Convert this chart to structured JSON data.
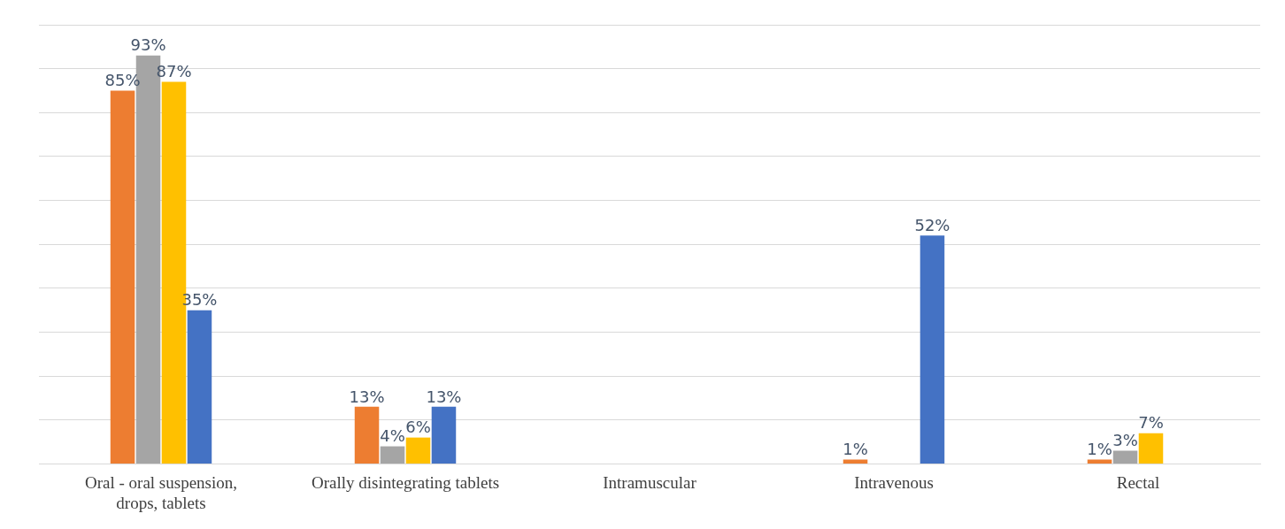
{
  "chart_data": {
    "type": "bar",
    "categories": [
      "Oral - oral suspension, drops, tablets",
      "Orally disintegrating tablets",
      "Intramuscular",
      "Intravenous",
      "Rectal"
    ],
    "series": [
      {
        "color": "#ed7d31",
        "values": [
          85,
          13,
          null,
          1,
          1
        ],
        "value_labels": [
          "85%",
          "13%",
          null,
          "1%",
          "1%"
        ]
      },
      {
        "color": "#a5a5a5",
        "values": [
          93,
          4,
          null,
          null,
          3
        ],
        "value_labels": [
          "93%",
          "4%",
          null,
          null,
          "3%"
        ]
      },
      {
        "color": "#ffc000",
        "values": [
          87,
          6,
          null,
          null,
          7
        ],
        "value_labels": [
          "87%",
          "6%",
          null,
          null,
          "7%"
        ]
      },
      {
        "color": "#4472c4",
        "values": [
          35,
          13,
          null,
          52,
          null
        ],
        "value_labels": [
          "35%",
          "13%",
          null,
          "52%",
          null
        ]
      }
    ],
    "ylim": [
      0,
      100
    ],
    "yticks": [
      {
        "value": 0,
        "label": null
      },
      {
        "value": 10,
        "label": null
      },
      {
        "value": 20,
        "label": null
      },
      {
        "value": 30,
        "label": null
      },
      {
        "value": 40,
        "label": null
      },
      {
        "value": 50,
        "label": null
      },
      {
        "value": 60,
        "label": null
      },
      {
        "value": 70,
        "label": null
      },
      {
        "value": 80,
        "label": null
      },
      {
        "value": 90,
        "label": null
      },
      {
        "value": 100,
        "label": null
      }
    ],
    "grid": "y",
    "legend": false
  }
}
